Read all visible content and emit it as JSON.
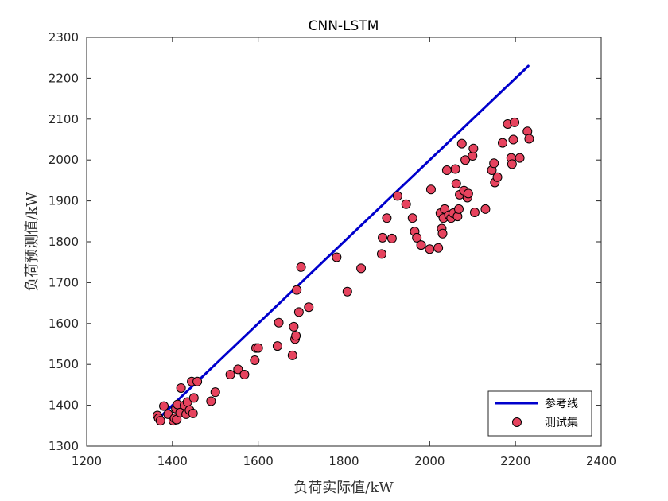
{
  "chart_data": {
    "type": "scatter",
    "title": "CNN-LSTM",
    "xlabel": "负荷实际值/kW",
    "ylabel": "负荷预测值/kW",
    "xlim": [
      1200,
      2400
    ],
    "ylim": [
      1300,
      2300
    ],
    "xticks": [
      1200,
      1400,
      1600,
      1800,
      2000,
      2200,
      2400
    ],
    "yticks": [
      1300,
      1400,
      1500,
      1600,
      1700,
      1800,
      1900,
      2000,
      2100,
      2200,
      2300
    ],
    "legend_position": "bottom-right",
    "series": [
      {
        "name": "参考线",
        "kind": "line",
        "color": "#0000cc",
        "x": [
          1365,
          2230
        ],
        "y": [
          1365,
          2230
        ]
      },
      {
        "name": "测试集",
        "kind": "scatter",
        "color": "#e6435e",
        "edge_color": "#000000",
        "x": [
          1365,
          1368,
          1372,
          1380,
          1390,
          1402,
          1405,
          1408,
          1410,
          1412,
          1418,
          1420,
          1428,
          1432,
          1435,
          1440,
          1445,
          1448,
          1450,
          1458,
          1490,
          1500,
          1535,
          1553,
          1568,
          1592,
          1595,
          1600,
          1645,
          1648,
          1680,
          1683,
          1686,
          1688,
          1690,
          1695,
          1700,
          1718,
          1783,
          1808,
          1840,
          1888,
          1890,
          1900,
          1912,
          1925,
          1945,
          1960,
          1965,
          1970,
          1980,
          2000,
          2003,
          2020,
          2025,
          2028,
          2030,
          2032,
          2035,
          2040,
          2045,
          2050,
          2055,
          2060,
          2062,
          2065,
          2068,
          2070,
          2075,
          2080,
          2083,
          2088,
          2090,
          2100,
          2102,
          2105,
          2130,
          2145,
          2150,
          2152,
          2158,
          2170,
          2182,
          2190,
          2192,
          2195,
          2198,
          2210,
          2228,
          2232
        ],
        "y": [
          1375,
          1368,
          1362,
          1398,
          1378,
          1362,
          1368,
          1392,
          1365,
          1402,
          1382,
          1442,
          1400,
          1378,
          1408,
          1388,
          1458,
          1380,
          1418,
          1458,
          1410,
          1432,
          1475,
          1488,
          1475,
          1510,
          1540,
          1540,
          1545,
          1602,
          1522,
          1592,
          1562,
          1570,
          1682,
          1628,
          1738,
          1640,
          1762,
          1678,
          1735,
          1770,
          1810,
          1858,
          1808,
          1912,
          1892,
          1858,
          1825,
          1810,
          1792,
          1782,
          1928,
          1785,
          1870,
          1832,
          1820,
          1858,
          1880,
          1975,
          1865,
          1858,
          1870,
          1978,
          1942,
          1862,
          1880,
          1915,
          2040,
          1925,
          2000,
          1908,
          1918,
          2010,
          2028,
          1872,
          1880,
          1975,
          1992,
          1945,
          1958,
          2042,
          2088,
          2005,
          1990,
          2050,
          2092,
          2005,
          2070,
          2052
        ]
      }
    ]
  }
}
